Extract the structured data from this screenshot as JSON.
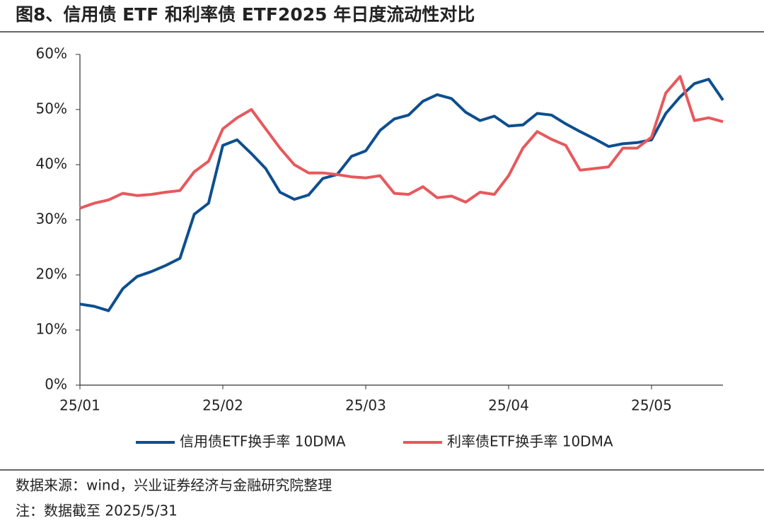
{
  "chart_data": {
    "type": "line",
    "title": "图8、信用债 ETF 和利率债 ETF2025 年日度流动性对比",
    "source": "数据来源：wind，兴业证券经济与金融研究院整理",
    "note": "注：数据截至 2025/5/31",
    "categories": [
      "25/01",
      null,
      null,
      null,
      null,
      null,
      null,
      null,
      null,
      null,
      "25/02",
      null,
      null,
      null,
      null,
      null,
      null,
      null,
      null,
      null,
      "25/03",
      null,
      null,
      null,
      null,
      null,
      null,
      null,
      null,
      null,
      "25/04",
      null,
      null,
      null,
      null,
      null,
      null,
      null,
      null,
      null,
      "25/05",
      null,
      null,
      null,
      null,
      null
    ],
    "series": [
      {
        "name": "信用债ETF换手率 10DMA",
        "color": "#0d4f8f",
        "values": [
          14.7,
          14.3,
          13.5,
          17.5,
          19.7,
          20.6,
          21.7,
          23.0,
          31.0,
          33.0,
          43.5,
          44.5,
          42.0,
          39.3,
          35.0,
          33.7,
          34.5,
          37.5,
          38.2,
          41.5,
          42.5,
          46.2,
          48.3,
          49.0,
          51.5,
          52.7,
          52.0,
          49.5,
          48.0,
          48.8,
          47.0,
          47.2,
          49.3,
          49.0,
          47.4,
          46.0,
          44.7,
          43.3,
          43.8,
          44.0,
          44.5,
          49.3,
          52.3,
          54.7,
          55.5,
          51.7
        ]
      },
      {
        "name": "利率债ETF换手率 10DMA",
        "color": "#e8585c",
        "values": [
          32.1,
          33.0,
          33.6,
          34.8,
          34.4,
          34.6,
          35.0,
          35.3,
          38.7,
          40.6,
          46.5,
          48.5,
          50.0,
          46.5,
          43.0,
          40.0,
          38.5,
          38.5,
          38.2,
          37.8,
          37.6,
          38.0,
          34.8,
          34.6,
          36.0,
          34.0,
          34.3,
          33.2,
          35.0,
          34.6,
          38.0,
          43.0,
          46.0,
          44.6,
          43.5,
          39.0,
          39.3,
          39.6,
          43.0,
          43.0,
          45.0,
          53.0,
          56.0,
          48.0,
          48.5,
          47.8
        ]
      }
    ],
    "ylim": [
      0,
      60
    ],
    "yticks": [
      {
        "value": 0,
        "label": "0%"
      },
      {
        "value": 10,
        "label": "10%"
      },
      {
        "value": 20,
        "label": "20%"
      },
      {
        "value": 30,
        "label": "30%"
      },
      {
        "value": 40,
        "label": "40%"
      },
      {
        "value": 50,
        "label": "50%"
      },
      {
        "value": 60,
        "label": "60%"
      }
    ],
    "legend": "bottom"
  }
}
